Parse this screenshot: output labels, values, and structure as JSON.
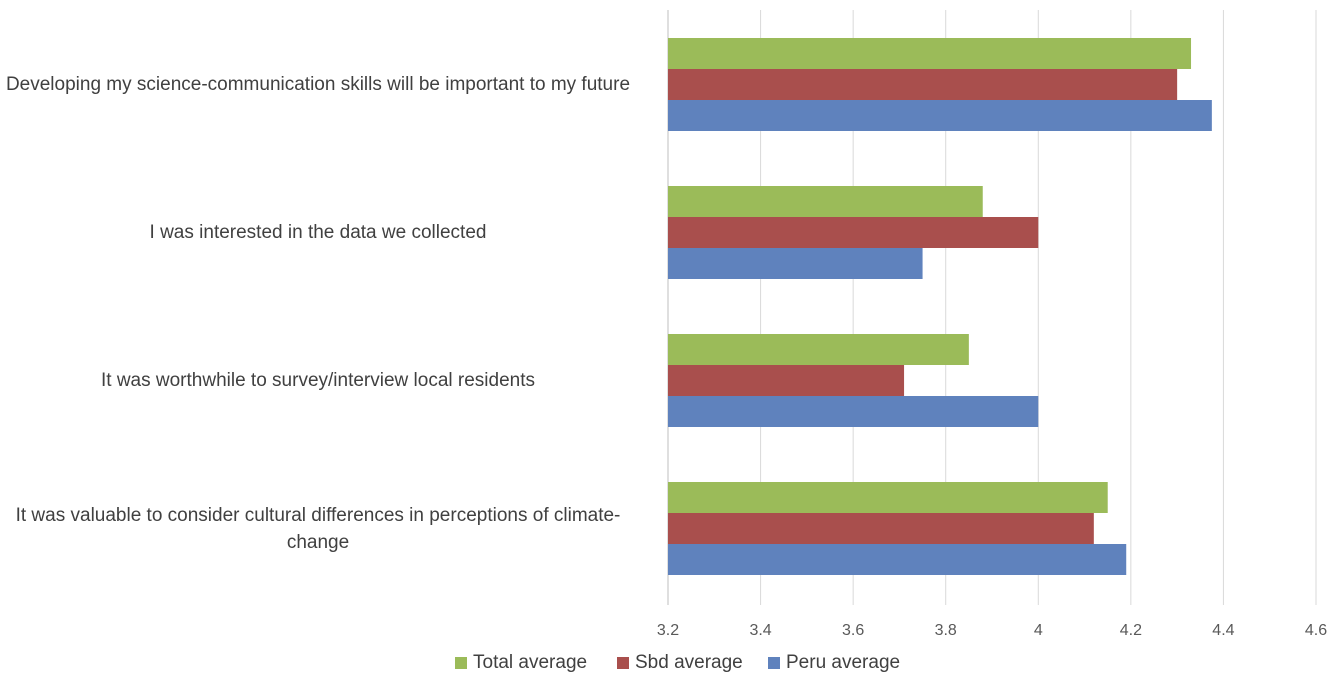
{
  "chart_data": {
    "type": "bar",
    "orientation": "horizontal",
    "categories": [
      "Developing my science-communication skills will be important to my future",
      "I was interested in the data we collected",
      "It was worthwhile to survey/interview local residents",
      "It was valuable to consider cultural differences in perceptions of climate-change"
    ],
    "series": [
      {
        "name": "Total average",
        "color": "#9bbb59",
        "values": [
          4.33,
          3.88,
          3.85,
          4.15
        ]
      },
      {
        "name": "Sbd average",
        "color": "#a94f4d",
        "values": [
          4.3,
          4.0,
          3.71,
          4.12
        ]
      },
      {
        "name": "Peru average",
        "color": "#5f82bd",
        "values": [
          4.375,
          3.75,
          4.0,
          4.19
        ]
      }
    ],
    "xlim": [
      3.2,
      4.6
    ],
    "xticks": [
      "3.2",
      "3.4",
      "3.6",
      "3.8",
      "4",
      "4.2",
      "4.4",
      "4.6"
    ],
    "grid": "vertical",
    "legend_position": "bottom"
  }
}
